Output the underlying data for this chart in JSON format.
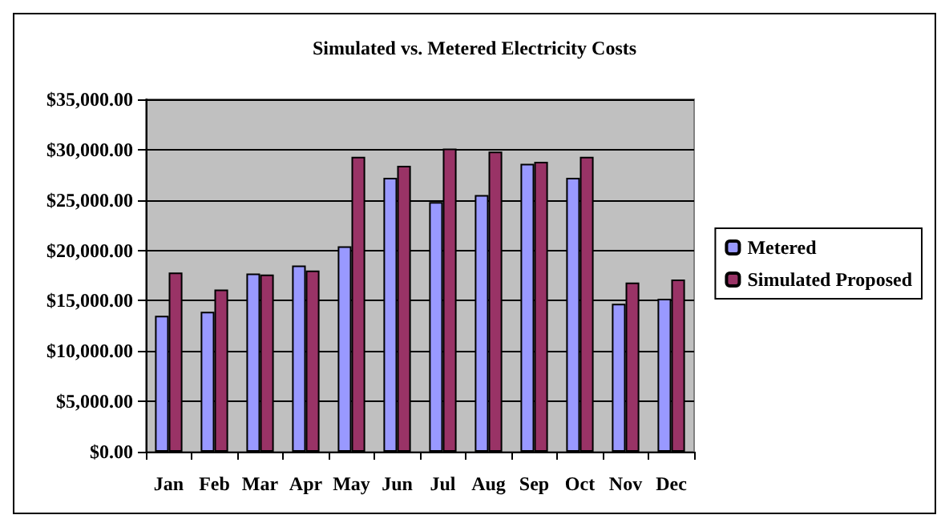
{
  "chart_data": {
    "type": "bar",
    "title": "Simulated vs. Metered Electricity Costs",
    "categories": [
      "Jan",
      "Feb",
      "Mar",
      "Apr",
      "May",
      "Jun",
      "Jul",
      "Aug",
      "Sep",
      "Oct",
      "Nov",
      "Dec"
    ],
    "series": [
      {
        "name": "Metered",
        "color": "#9999ff",
        "values": [
          13500,
          13900,
          17700,
          18500,
          20400,
          27200,
          24800,
          25500,
          28600,
          27200,
          14700,
          15200
        ]
      },
      {
        "name": "Simulated Proposed",
        "color": "#993366",
        "values": [
          17800,
          16100,
          17600,
          18000,
          29300,
          28400,
          30100,
          29800,
          28800,
          29300,
          16800,
          17100
        ]
      }
    ],
    "ylim": [
      0,
      35000
    ],
    "yticks": [
      {
        "value": 0,
        "label": "$0.00"
      },
      {
        "value": 5000,
        "label": "$5,000.00"
      },
      {
        "value": 10000,
        "label": "$10,000.00"
      },
      {
        "value": 15000,
        "label": "$15,000.00"
      },
      {
        "value": 20000,
        "label": "$20,000.00"
      },
      {
        "value": 25000,
        "label": "$25,000.00"
      },
      {
        "value": 30000,
        "label": "$30,000.00"
      },
      {
        "value": 35000,
        "label": "$35,000.00"
      }
    ],
    "grid": "y",
    "legend": "right"
  }
}
